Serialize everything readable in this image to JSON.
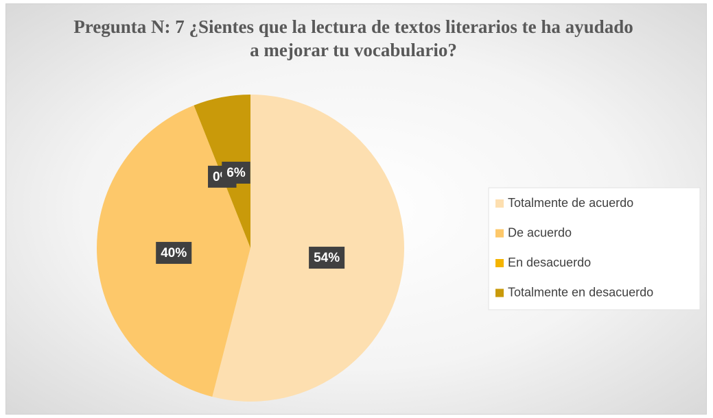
{
  "chart_data": {
    "type": "pie",
    "title": "Pregunta N: 7 ¿Sientes que la lectura de textos literarios te ha ayudado a mejorar tu vocabulario?",
    "categories": [
      "Totalmente de acuerdo",
      "De acuerdo",
      "En desacuerdo",
      "Totalmente en desacuerdo"
    ],
    "values": [
      54,
      40,
      0,
      6
    ],
    "value_labels": [
      "54%",
      "40%",
      "0%",
      "6%"
    ],
    "colors": [
      "#fddfb0",
      "#fdc86a",
      "#f4b400",
      "#c99a0a"
    ],
    "legend": "right"
  }
}
